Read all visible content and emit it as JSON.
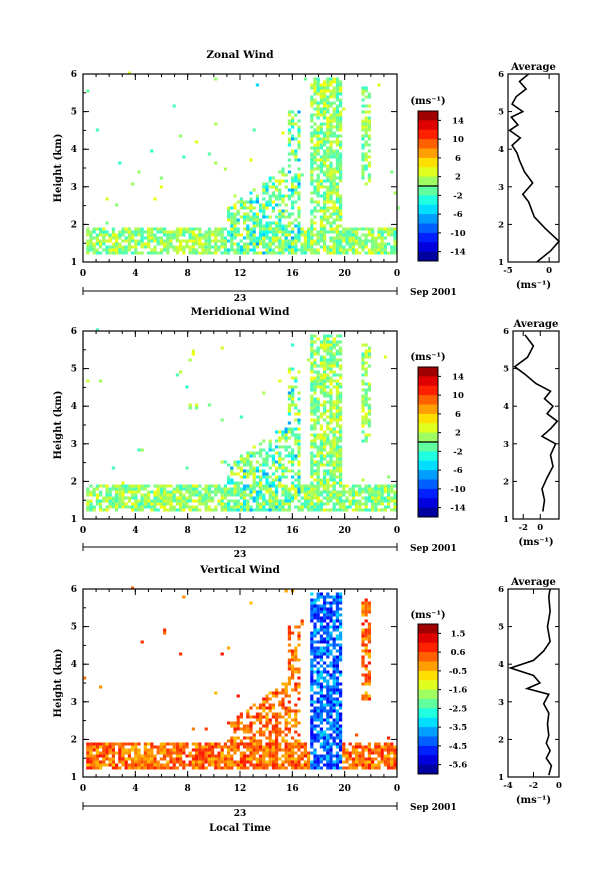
{
  "chart_data": [
    {
      "type": "heatmap",
      "title": "Zonal Wind",
      "ylabel": "Height (km)",
      "xlabel": "",
      "date_label": "23",
      "month_label": "Sep 2001",
      "x_ticks": [
        "0",
        "4",
        "8",
        "12",
        "16",
        "20",
        "0"
      ],
      "y_ticks": [
        "1",
        "2",
        "3",
        "4",
        "5",
        "6"
      ],
      "xlim": [
        0,
        24
      ],
      "ylim": [
        1,
        6
      ],
      "colorbar": {
        "unit": "(ms⁻¹)",
        "ticks": [
          "14",
          "10",
          "6",
          "2",
          "-2",
          "-6",
          "-10",
          "-14"
        ],
        "range": [
          -16,
          16
        ]
      },
      "profile": {
        "title": "Average",
        "xlabel": "(ms⁻¹)",
        "x_ticks": [
          "-5",
          "0"
        ],
        "xlim": [
          -5,
          1.2
        ],
        "points": [
          [
            -1.5,
            1.0
          ],
          [
            0.2,
            1.3
          ],
          [
            1.2,
            1.55
          ],
          [
            -0.5,
            1.9
          ],
          [
            -1.8,
            2.2
          ],
          [
            -2.5,
            2.6
          ],
          [
            -3.2,
            2.8
          ],
          [
            -2.0,
            3.1
          ],
          [
            -3.0,
            3.4
          ],
          [
            -3.6,
            3.7
          ],
          [
            -3.9,
            3.9
          ],
          [
            -4.5,
            4.1
          ],
          [
            -3.5,
            4.3
          ],
          [
            -4.8,
            4.5
          ],
          [
            -3.8,
            4.65
          ],
          [
            -4.6,
            4.85
          ],
          [
            -3.2,
            5.0
          ],
          [
            -4.5,
            5.2
          ],
          [
            -4.0,
            5.4
          ],
          [
            -2.8,
            5.6
          ],
          [
            -3.6,
            5.8
          ],
          [
            -2.5,
            6.0
          ]
        ]
      }
    },
    {
      "type": "heatmap",
      "title": "Meridional Wind",
      "ylabel": "Height (km)",
      "xlabel": "",
      "date_label": "23",
      "month_label": "Sep 2001",
      "x_ticks": [
        "0",
        "4",
        "8",
        "12",
        "16",
        "20",
        "0"
      ],
      "y_ticks": [
        "1",
        "2",
        "3",
        "4",
        "5",
        "6"
      ],
      "xlim": [
        0,
        24
      ],
      "ylim": [
        1,
        6
      ],
      "colorbar": {
        "unit": "(ms⁻¹)",
        "ticks": [
          "14",
          "10",
          "6",
          "2",
          "-2",
          "-6",
          "-10",
          "-14"
        ],
        "range": [
          -16,
          16
        ]
      },
      "profile": {
        "title": "Average",
        "xlabel": "(ms⁻¹)",
        "x_ticks": [
          "-2",
          "0"
        ],
        "xlim": [
          -3.2,
          2.2
        ],
        "points": [
          [
            0.3,
            1.2
          ],
          [
            0.5,
            1.5
          ],
          [
            0.2,
            1.8
          ],
          [
            0.8,
            2.1
          ],
          [
            1.5,
            2.4
          ],
          [
            1.2,
            2.7
          ],
          [
            1.8,
            3.0
          ],
          [
            0.2,
            3.2
          ],
          [
            1.2,
            3.4
          ],
          [
            2.0,
            3.6
          ],
          [
            0.8,
            3.8
          ],
          [
            1.5,
            4.0
          ],
          [
            0.5,
            4.2
          ],
          [
            1.2,
            4.4
          ],
          [
            -0.5,
            4.6
          ],
          [
            -1.8,
            4.85
          ],
          [
            -3.0,
            5.05
          ],
          [
            -1.5,
            5.3
          ],
          [
            -0.8,
            5.6
          ],
          [
            -1.8,
            5.9
          ]
        ]
      }
    },
    {
      "type": "heatmap",
      "title": "Vertical Wind",
      "ylabel": "Height (km)",
      "xlabel": "Local Time",
      "date_label": "23",
      "month_label": "Sep 2001",
      "x_ticks": [
        "0",
        "4",
        "8",
        "12",
        "16",
        "20",
        "0"
      ],
      "y_ticks": [
        "1",
        "2",
        "3",
        "4",
        "5",
        "6"
      ],
      "xlim": [
        0,
        24
      ],
      "ylim": [
        1,
        6
      ],
      "colorbar": {
        "unit": "(ms⁻¹)",
        "ticks": [
          "1.5",
          "0.6",
          "-0.5",
          "-1.6",
          "-2.5",
          "-3.5",
          "-4.5",
          "-5.6"
        ],
        "range": [
          -6.1,
          2.0
        ]
      },
      "profile": {
        "title": "Average",
        "xlabel": "(ms⁻¹)",
        "x_ticks": [
          "-4",
          "-2",
          "0"
        ],
        "xlim": [
          -4,
          0
        ],
        "points": [
          [
            -0.8,
            1.05
          ],
          [
            -0.6,
            1.3
          ],
          [
            -1.0,
            1.5
          ],
          [
            -0.7,
            1.7
          ],
          [
            -1.0,
            1.9
          ],
          [
            -0.8,
            2.1
          ],
          [
            -0.9,
            2.4
          ],
          [
            -0.8,
            2.7
          ],
          [
            -1.2,
            2.95
          ],
          [
            -0.8,
            3.2
          ],
          [
            -2.5,
            3.35
          ],
          [
            -1.5,
            3.5
          ],
          [
            -2.0,
            3.7
          ],
          [
            -3.8,
            3.9
          ],
          [
            -2.0,
            4.1
          ],
          [
            -1.2,
            4.35
          ],
          [
            -0.7,
            4.6
          ],
          [
            -0.9,
            5.0
          ],
          [
            -0.7,
            5.4
          ],
          [
            -0.8,
            5.8
          ],
          [
            -0.7,
            6.0
          ]
        ]
      }
    }
  ]
}
